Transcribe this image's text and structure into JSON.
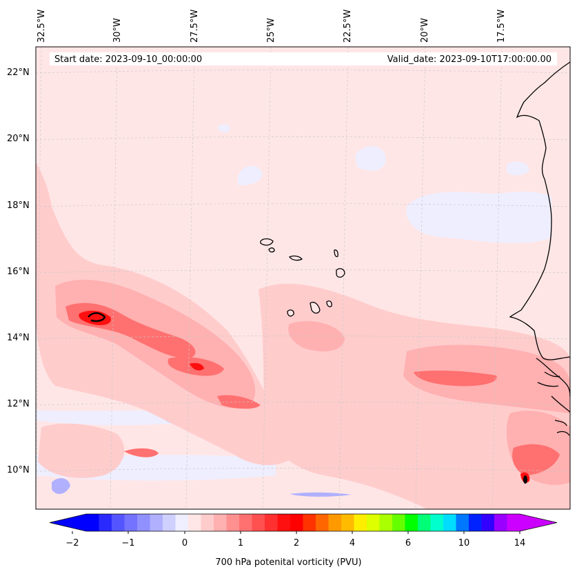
{
  "header": {
    "start_date": "Start date: 2023-09-10_00:00:00",
    "valid_date": "Valid_date: 2023-09-10T17:00:00.00"
  },
  "map": {
    "lon_labels": [
      "32.5°W",
      "30°W",
      "27.5°W",
      "25°W",
      "22.5°W",
      "20°W",
      "17.5°W"
    ],
    "lat_labels": [
      "22°N",
      "20°N",
      "18°N",
      "16°N",
      "14°N",
      "12°N",
      "10°N"
    ],
    "background_color": "#ffe6e6",
    "coastline_color": "#000000"
  },
  "colorbar": {
    "title": "700 hPa potenital vorticity (PVU)",
    "ticks": [
      "−2",
      "−1",
      "0",
      "1",
      "2",
      "4",
      "6",
      "10",
      "14"
    ],
    "colors": [
      "#0000ff",
      "#2a2aff",
      "#5555ff",
      "#7373ff",
      "#9090ff",
      "#b0b0ff",
      "#d0d0ff",
      "#eeeeff",
      "#ffe6e6",
      "#ffcccc",
      "#ffb0b0",
      "#ff9090",
      "#ff7070",
      "#ff5050",
      "#ff3030",
      "#ff1010",
      "#ff0000",
      "#ff3300",
      "#ff6600",
      "#ff9900",
      "#ffbb00",
      "#ffee00",
      "#ddff00",
      "#aaff00",
      "#66ff00",
      "#00ff00",
      "#00ff77",
      "#00ffcc",
      "#00ddff",
      "#0077ff",
      "#0022ff",
      "#3300ff",
      "#9900ff",
      "#cc00ff"
    ],
    "extend_low_color": "#0000ff",
    "extend_high_color": "#cc00ff"
  }
}
